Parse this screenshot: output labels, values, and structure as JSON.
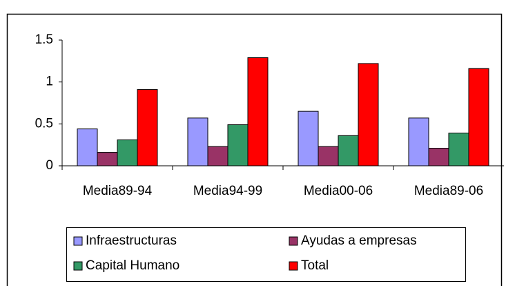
{
  "chart_data": {
    "type": "bar",
    "categories": [
      "Media89-94",
      "Media94-99",
      "Media00-06",
      "Media89-06"
    ],
    "series": [
      {
        "name": "Infraestructuras",
        "color": "#9999ff",
        "values": [
          0.44,
          0.57,
          0.65,
          0.57
        ]
      },
      {
        "name": "Ayudas a empresas",
        "color": "#993366",
        "values": [
          0.16,
          0.23,
          0.23,
          0.21
        ]
      },
      {
        "name": "Capital Humano",
        "color": "#339966",
        "values": [
          0.31,
          0.49,
          0.36,
          0.39
        ]
      },
      {
        "name": "Total",
        "color": "#ff0000",
        "values": [
          0.91,
          1.29,
          1.22,
          1.16
        ]
      }
    ],
    "ylim": [
      0,
      1.5
    ],
    "yticks": [
      0,
      {
        "value": 0.5,
        "label": "0.5"
      },
      1,
      {
        "value": 1.5,
        "label": "1.5"
      }
    ],
    "grid": false
  }
}
